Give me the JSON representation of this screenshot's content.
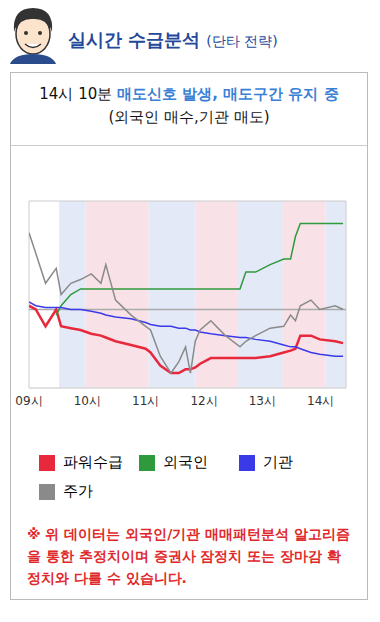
{
  "header": {
    "title": "실시간 수급분석",
    "subtitle": "(단타 전략)"
  },
  "signal": {
    "time": "14시 10분",
    "message": "매도신호 발생, 매도구간 유지 중",
    "detail": "(외국인 매수,기관 매도)"
  },
  "chart_data": {
    "type": "line",
    "x": [
      540,
      547,
      557,
      568,
      573,
      583,
      593,
      604,
      614,
      619,
      629,
      645,
      660,
      665,
      675,
      686,
      694,
      701,
      706,
      711,
      716,
      727,
      742,
      757,
      763,
      773,
      788,
      802,
      809,
      814,
      819,
      830,
      839,
      855,
      863
    ],
    "series": [
      {
        "name": "파워수급",
        "color": "#e8283c",
        "values": [
          44,
          42,
          33,
          42,
          33,
          32,
          31,
          29,
          28,
          27,
          25,
          23,
          21,
          19,
          12,
          8,
          8,
          10,
          10,
          11,
          13,
          16,
          16,
          16,
          16,
          16,
          17,
          19,
          20,
          21,
          28,
          28,
          26,
          25,
          24
        ]
      },
      {
        "name": "외국인",
        "color": "#2e9a3c",
        "values": [
          null,
          null,
          null,
          39,
          44,
          50,
          53,
          53,
          53,
          53,
          53,
          53,
          53,
          53,
          53,
          53,
          53,
          53,
          53,
          53,
          53,
          53,
          53,
          53,
          62,
          62,
          66,
          69,
          69,
          81,
          88,
          88,
          88,
          88,
          88
        ]
      },
      {
        "name": "기관",
        "color": "#3a3ae8",
        "values": [
          46,
          44,
          43,
          43,
          43,
          42,
          42,
          41,
          40,
          39,
          38,
          37,
          35,
          34,
          33,
          33,
          32,
          32,
          31,
          31,
          30,
          29,
          28,
          27,
          27,
          26,
          25,
          23,
          22,
          22,
          21,
          19,
          18,
          17,
          17
        ]
      },
      {
        "name": "주가",
        "color": "#8a8a8a",
        "values": [
          83,
          72,
          56,
          64,
          50,
          56,
          58,
          61,
          56,
          66,
          47,
          39,
          33,
          31,
          17,
          8,
          14,
          22,
          8,
          25,
          31,
          36,
          28,
          22,
          25,
          28,
          32,
          33,
          39,
          36,
          44,
          47,
          42,
          44,
          42
        ]
      }
    ],
    "xlim": [
      540,
      866
    ],
    "xticks": [
      {
        "value": 540,
        "label": "09시"
      },
      {
        "value": 600,
        "label": "10시"
      },
      {
        "value": 660,
        "label": "11시"
      },
      {
        "value": 720,
        "label": "12시"
      },
      {
        "value": 780,
        "label": "13시"
      },
      {
        "value": 840,
        "label": "14시"
      }
    ],
    "ylim": [
      0,
      100
    ],
    "tick_labels": "x",
    "baseline": 42,
    "zones": [
      {
        "start": 571,
        "end": 598,
        "color": "#e3e9f6"
      },
      {
        "start": 598,
        "end": 663,
        "color": "#f9e2e7"
      },
      {
        "start": 663,
        "end": 711,
        "color": "#e3e9f6"
      },
      {
        "start": 711,
        "end": 754,
        "color": "#f9e2e7"
      },
      {
        "start": 754,
        "end": 801,
        "color": "#e3e9f6"
      },
      {
        "start": 801,
        "end": 845,
        "color": "#f9e2e7"
      },
      {
        "start": 845,
        "end": 866,
        "color": "#e3e9f6"
      }
    ],
    "legend": "bottom"
  },
  "disclaimer": "※ 위 데이터는 외국인/기관 매매패턴분석 알고리즘을 통한 추정치이며 증권사 잠정치 또는 장마감 확정치와 다를 수 있습니다."
}
